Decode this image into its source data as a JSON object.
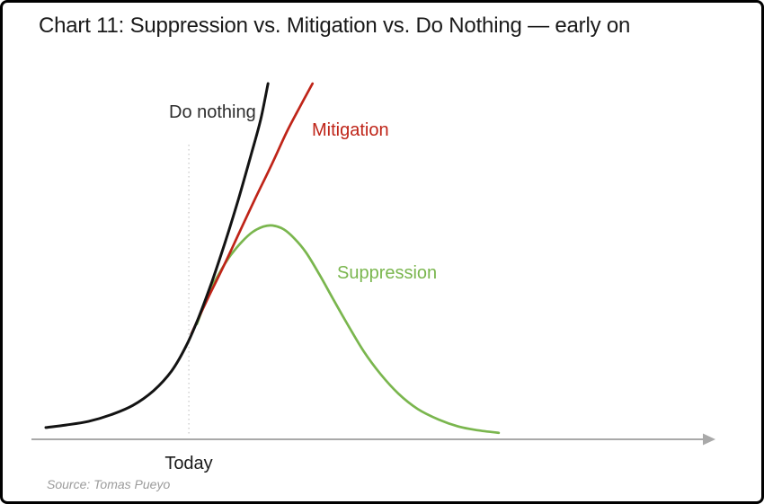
{
  "window": {
    "background": "#ffffff",
    "border_color": "#000000"
  },
  "chart_data": {
    "type": "line",
    "title": "Chart 11: Suppression vs. Mitigation vs. Do Nothing — early on",
    "xlabel": "",
    "ylabel": "",
    "grid": false,
    "legend_position": "inline-labels",
    "x_range": [
      0,
      100
    ],
    "y_range": [
      0,
      100
    ],
    "x_axis": {
      "style": "arrow-right",
      "color": "#a9a9a9",
      "tick_labels": []
    },
    "reference_line": {
      "label": "Today",
      "x": 21.5,
      "style": "dotted",
      "color": "#c6c6c6"
    },
    "series": [
      {
        "name": "Suppression",
        "color": "#7ab64e",
        "stroke_width": 2.7,
        "points": [
          [
            22.7,
            32.2
          ],
          [
            24.6,
            41.2
          ],
          [
            26.4,
            47.5
          ],
          [
            27.8,
            51.5
          ],
          [
            29.5,
            55.3
          ],
          [
            31.1,
            58.0
          ],
          [
            32.7,
            59.5
          ],
          [
            34.1,
            59.8
          ],
          [
            35.7,
            58.8
          ],
          [
            37.3,
            56.3
          ],
          [
            39.1,
            52.3
          ],
          [
            41.1,
            46.2
          ],
          [
            43.2,
            39.2
          ],
          [
            45.5,
            31.7
          ],
          [
            47.8,
            24.6
          ],
          [
            50.3,
            18.3
          ],
          [
            53.0,
            12.8
          ],
          [
            55.9,
            8.5
          ],
          [
            59.1,
            5.5
          ],
          [
            62.2,
            3.5
          ],
          [
            65.1,
            2.5
          ],
          [
            68.1,
            1.8
          ]
        ]
      },
      {
        "name": "Mitigation",
        "color": "#bf2418",
        "stroke_width": 2.7,
        "points": [
          [
            21.9,
            29.6
          ],
          [
            24.3,
            39.2
          ],
          [
            26.8,
            48.7
          ],
          [
            29.2,
            58.3
          ],
          [
            31.6,
            67.8
          ],
          [
            34.1,
            77.4
          ],
          [
            36.2,
            85.9
          ],
          [
            38.2,
            93.0
          ],
          [
            40.1,
            99.5
          ]
        ]
      },
      {
        "name": "Do nothing",
        "color": "#131313",
        "stroke_width": 3,
        "points": [
          [
            0,
            3.3
          ],
          [
            3.0,
            4.0
          ],
          [
            6.4,
            5.0
          ],
          [
            9.7,
            6.8
          ],
          [
            13.1,
            9.5
          ],
          [
            16.2,
            13.6
          ],
          [
            18.9,
            19.1
          ],
          [
            21.1,
            26.1
          ],
          [
            23.0,
            34.2
          ],
          [
            24.9,
            43.7
          ],
          [
            26.9,
            54.8
          ],
          [
            28.9,
            66.8
          ],
          [
            30.9,
            79.9
          ],
          [
            32.3,
            89.4
          ],
          [
            33.4,
            99.5
          ]
        ]
      }
    ],
    "annotations": [
      {
        "text": "Today",
        "x": 21.5,
        "role": "x-axis-label"
      },
      {
        "text": "Do nothing",
        "role": "series-label",
        "series": "Do nothing"
      },
      {
        "text": "Mitigation",
        "role": "series-label",
        "series": "Mitigation"
      },
      {
        "text": "Suppression",
        "role": "series-label",
        "series": "Suppression"
      }
    ]
  },
  "labels": {
    "do_nothing": "Do nothing",
    "mitigation": "Mitigation",
    "suppression": "Suppression",
    "today": "Today"
  },
  "footer": {
    "source": "Source: Tomas Pueyo"
  }
}
